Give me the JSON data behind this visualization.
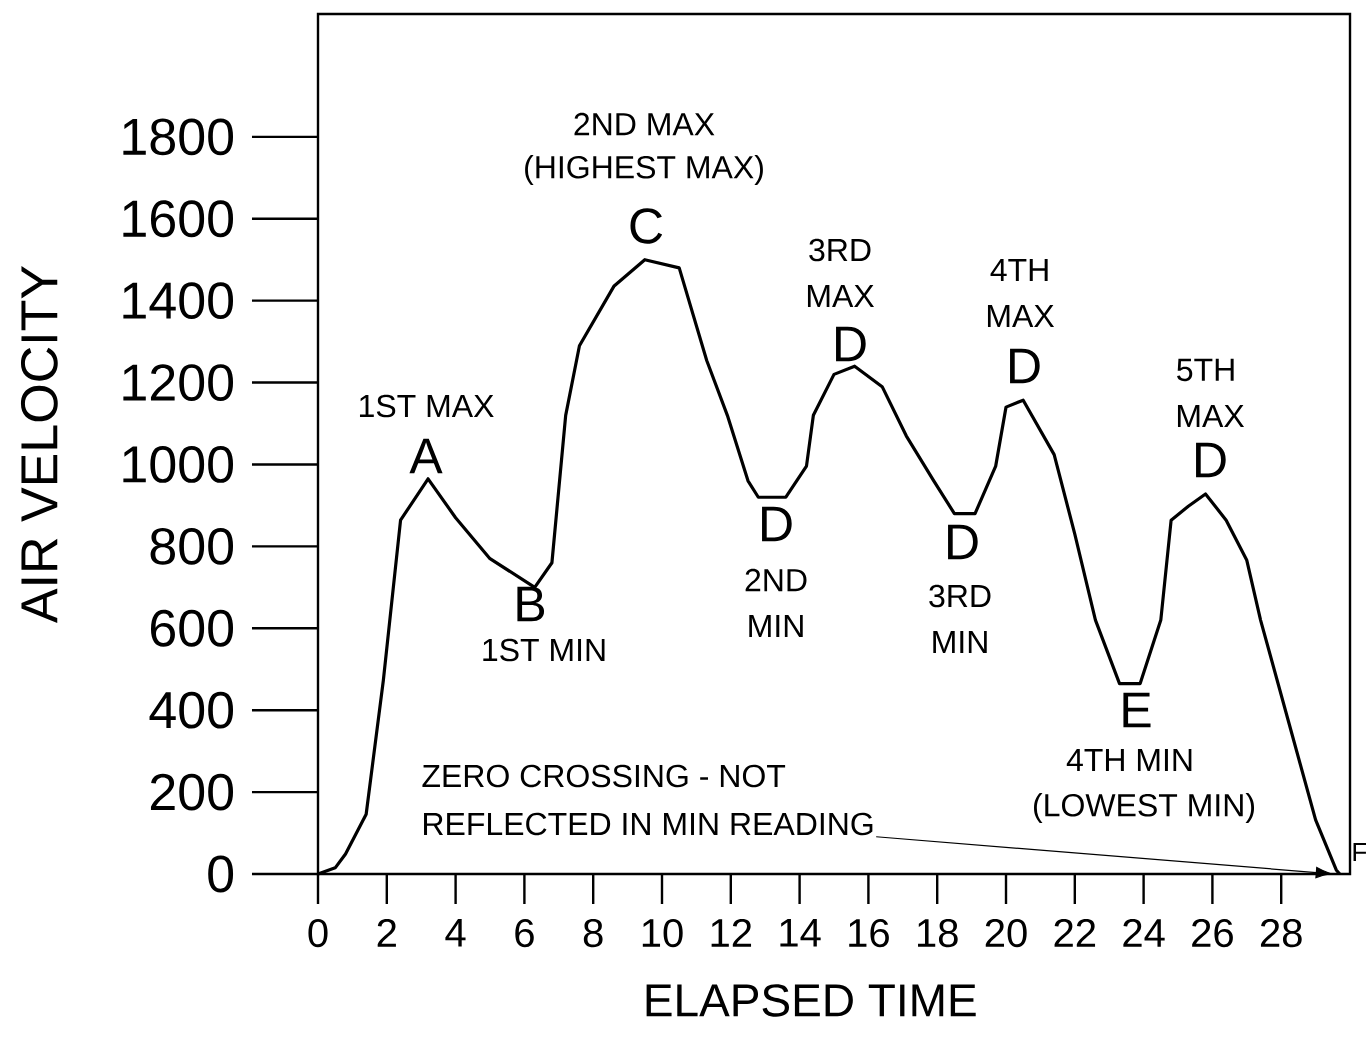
{
  "chart_data": {
    "type": "line",
    "xlabel": "ELAPSED TIME",
    "ylabel": "AIR VELOCITY",
    "xlim": [
      0,
      30
    ],
    "ylim": [
      0,
      2100
    ],
    "xticks": [
      0,
      2,
      4,
      6,
      8,
      10,
      12,
      14,
      16,
      18,
      20,
      22,
      24,
      26,
      28
    ],
    "yticks": [
      0,
      200,
      400,
      600,
      800,
      1000,
      1200,
      1400,
      1600,
      1800
    ],
    "marker": "none",
    "line_style": "solid",
    "grid": false,
    "series": [
      {
        "color": "#000000",
        "x": [
          0,
          0.5,
          0.8,
          1.4,
          1.9,
          2.4,
          3.2,
          4,
          5,
          6.3,
          6.8,
          7.2,
          7.6,
          8.6,
          9.5,
          10.5,
          11.3,
          11.9,
          12.5,
          12.8,
          13.6,
          14.2,
          14.4,
          15,
          15.6,
          16.4,
          17.1,
          17.9,
          18.5,
          19.1,
          19.7,
          20,
          20.5,
          21.4,
          22,
          22.6,
          23.3,
          23.9,
          24.5,
          24.8,
          25.3,
          25.8,
          26.4,
          27,
          27.4,
          28.2,
          29,
          29.6,
          29.7
        ],
        "values": [
          0,
          15,
          49,
          146,
          473,
          864,
          965,
          870,
          770,
          700,
          760,
          1120,
          1290,
          1435,
          1500,
          1480,
          1254,
          1120,
          960,
          920,
          920,
          996,
          1120,
          1220,
          1240,
          1190,
          1070,
          960,
          880,
          880,
          996,
          1140,
          1157,
          1024,
          830,
          620,
          465,
          465,
          620,
          864,
          898,
          928,
          864,
          766,
          620,
          376,
          132,
          10,
          0
        ]
      }
    ],
    "annotations": [
      "1ST MAX",
      "A",
      "2ND MAX",
      "(HIGHEST MAX)",
      "C",
      "3RD",
      "MAX",
      "D",
      "4TH",
      "MAX",
      "D",
      "5TH",
      "MAX",
      "D",
      "B",
      "1ST MIN",
      "D",
      "2ND",
      "MIN",
      "D",
      "3RD",
      "MIN",
      "E",
      "4TH MIN",
      "(LOWEST MIN)",
      "ZERO CROSSING - NOT",
      "REFLECTED IN MIN READING",
      "F"
    ]
  }
}
